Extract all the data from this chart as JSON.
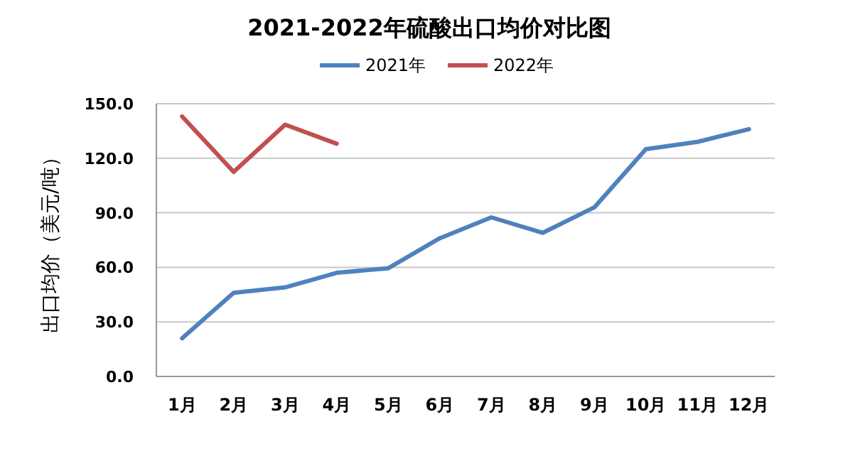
{
  "chart_data": {
    "type": "line",
    "title": "2021-2022年硫酸出口均价对比图",
    "ylabel": "出口均价（美元/吨）",
    "categories": [
      "1月",
      "2月",
      "3月",
      "4月",
      "5月",
      "6月",
      "7月",
      "8月",
      "9月",
      "10月",
      "11月",
      "12月"
    ],
    "series": [
      {
        "name": "2021年",
        "color": "#4f81bd",
        "values": [
          21,
          46,
          49,
          57,
          59.5,
          76,
          87.5,
          79,
          93,
          125,
          129,
          136
        ]
      },
      {
        "name": "2022年",
        "color": "#c0504d",
        "values": [
          143,
          112.5,
          138.5,
          128,
          null,
          null,
          null,
          null,
          null,
          null,
          null,
          null
        ]
      }
    ],
    "ylim": [
      0,
      150
    ],
    "yticks": [
      {
        "value": 0,
        "label": "0.0"
      },
      {
        "value": 30,
        "label": "30.0"
      },
      {
        "value": 60,
        "label": "60.0"
      },
      {
        "value": 90,
        "label": "90.0"
      },
      {
        "value": 120,
        "label": "120.0"
      },
      {
        "value": 150,
        "label": "150.0"
      }
    ],
    "grid": "y",
    "legend": "top",
    "marker": "none",
    "line_style": "solid"
  }
}
